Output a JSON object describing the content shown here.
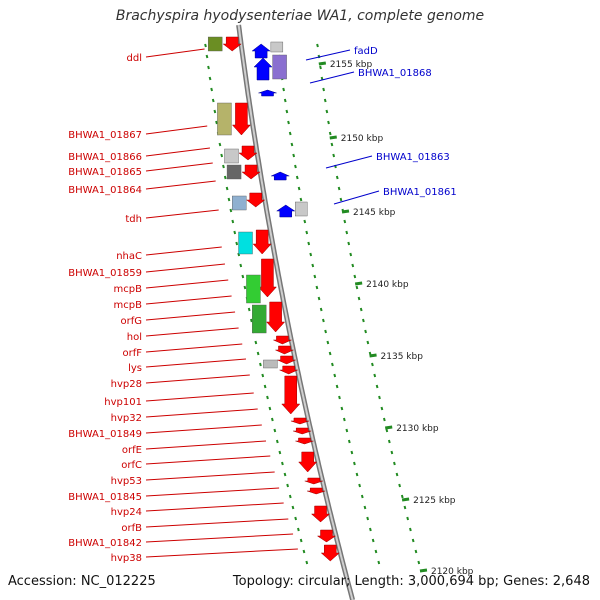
{
  "title": "Brachyspira hyodysenteriae WA1, complete genome",
  "footer": {
    "accession": "Accession: NC_012225",
    "summary": "Topology: circular; Length: 3,000,694 bp; Genes: 2,648"
  },
  "colors": {
    "forward": "#ff0000",
    "reverse": "#0000ff",
    "backbone": "#888888",
    "tick": "#228b22",
    "label_forward": "#cc0000",
    "label_reverse": "#0000cc"
  },
  "scale_labels": [
    "2155 kbp",
    "2150 kbp",
    "2145 kbp",
    "2140 kbp",
    "2135 kbp",
    "2130 kbp",
    "2125 kbp",
    "2120 kbp"
  ],
  "left_labels": [
    "ddl",
    "BHWA1_01867",
    "BHWA1_01866",
    "BHWA1_01865",
    "BHWA1_01864",
    "tdh",
    "nhaC",
    "BHWA1_01859",
    "mcpB",
    "mcpB",
    "orfG",
    "hol",
    "orfF",
    "lys",
    "hvp28",
    "hvp101",
    "hvp32",
    "BHWA1_01849",
    "orfE",
    "orfC",
    "hvp53",
    "BHWA1_01845",
    "hvp24",
    "orfB",
    "BHWA1_01842",
    "hvp38"
  ],
  "right_labels": [
    "fadD",
    "BHWA1_01868",
    "BHWA1_01863",
    "BHWA1_01861"
  ]
}
